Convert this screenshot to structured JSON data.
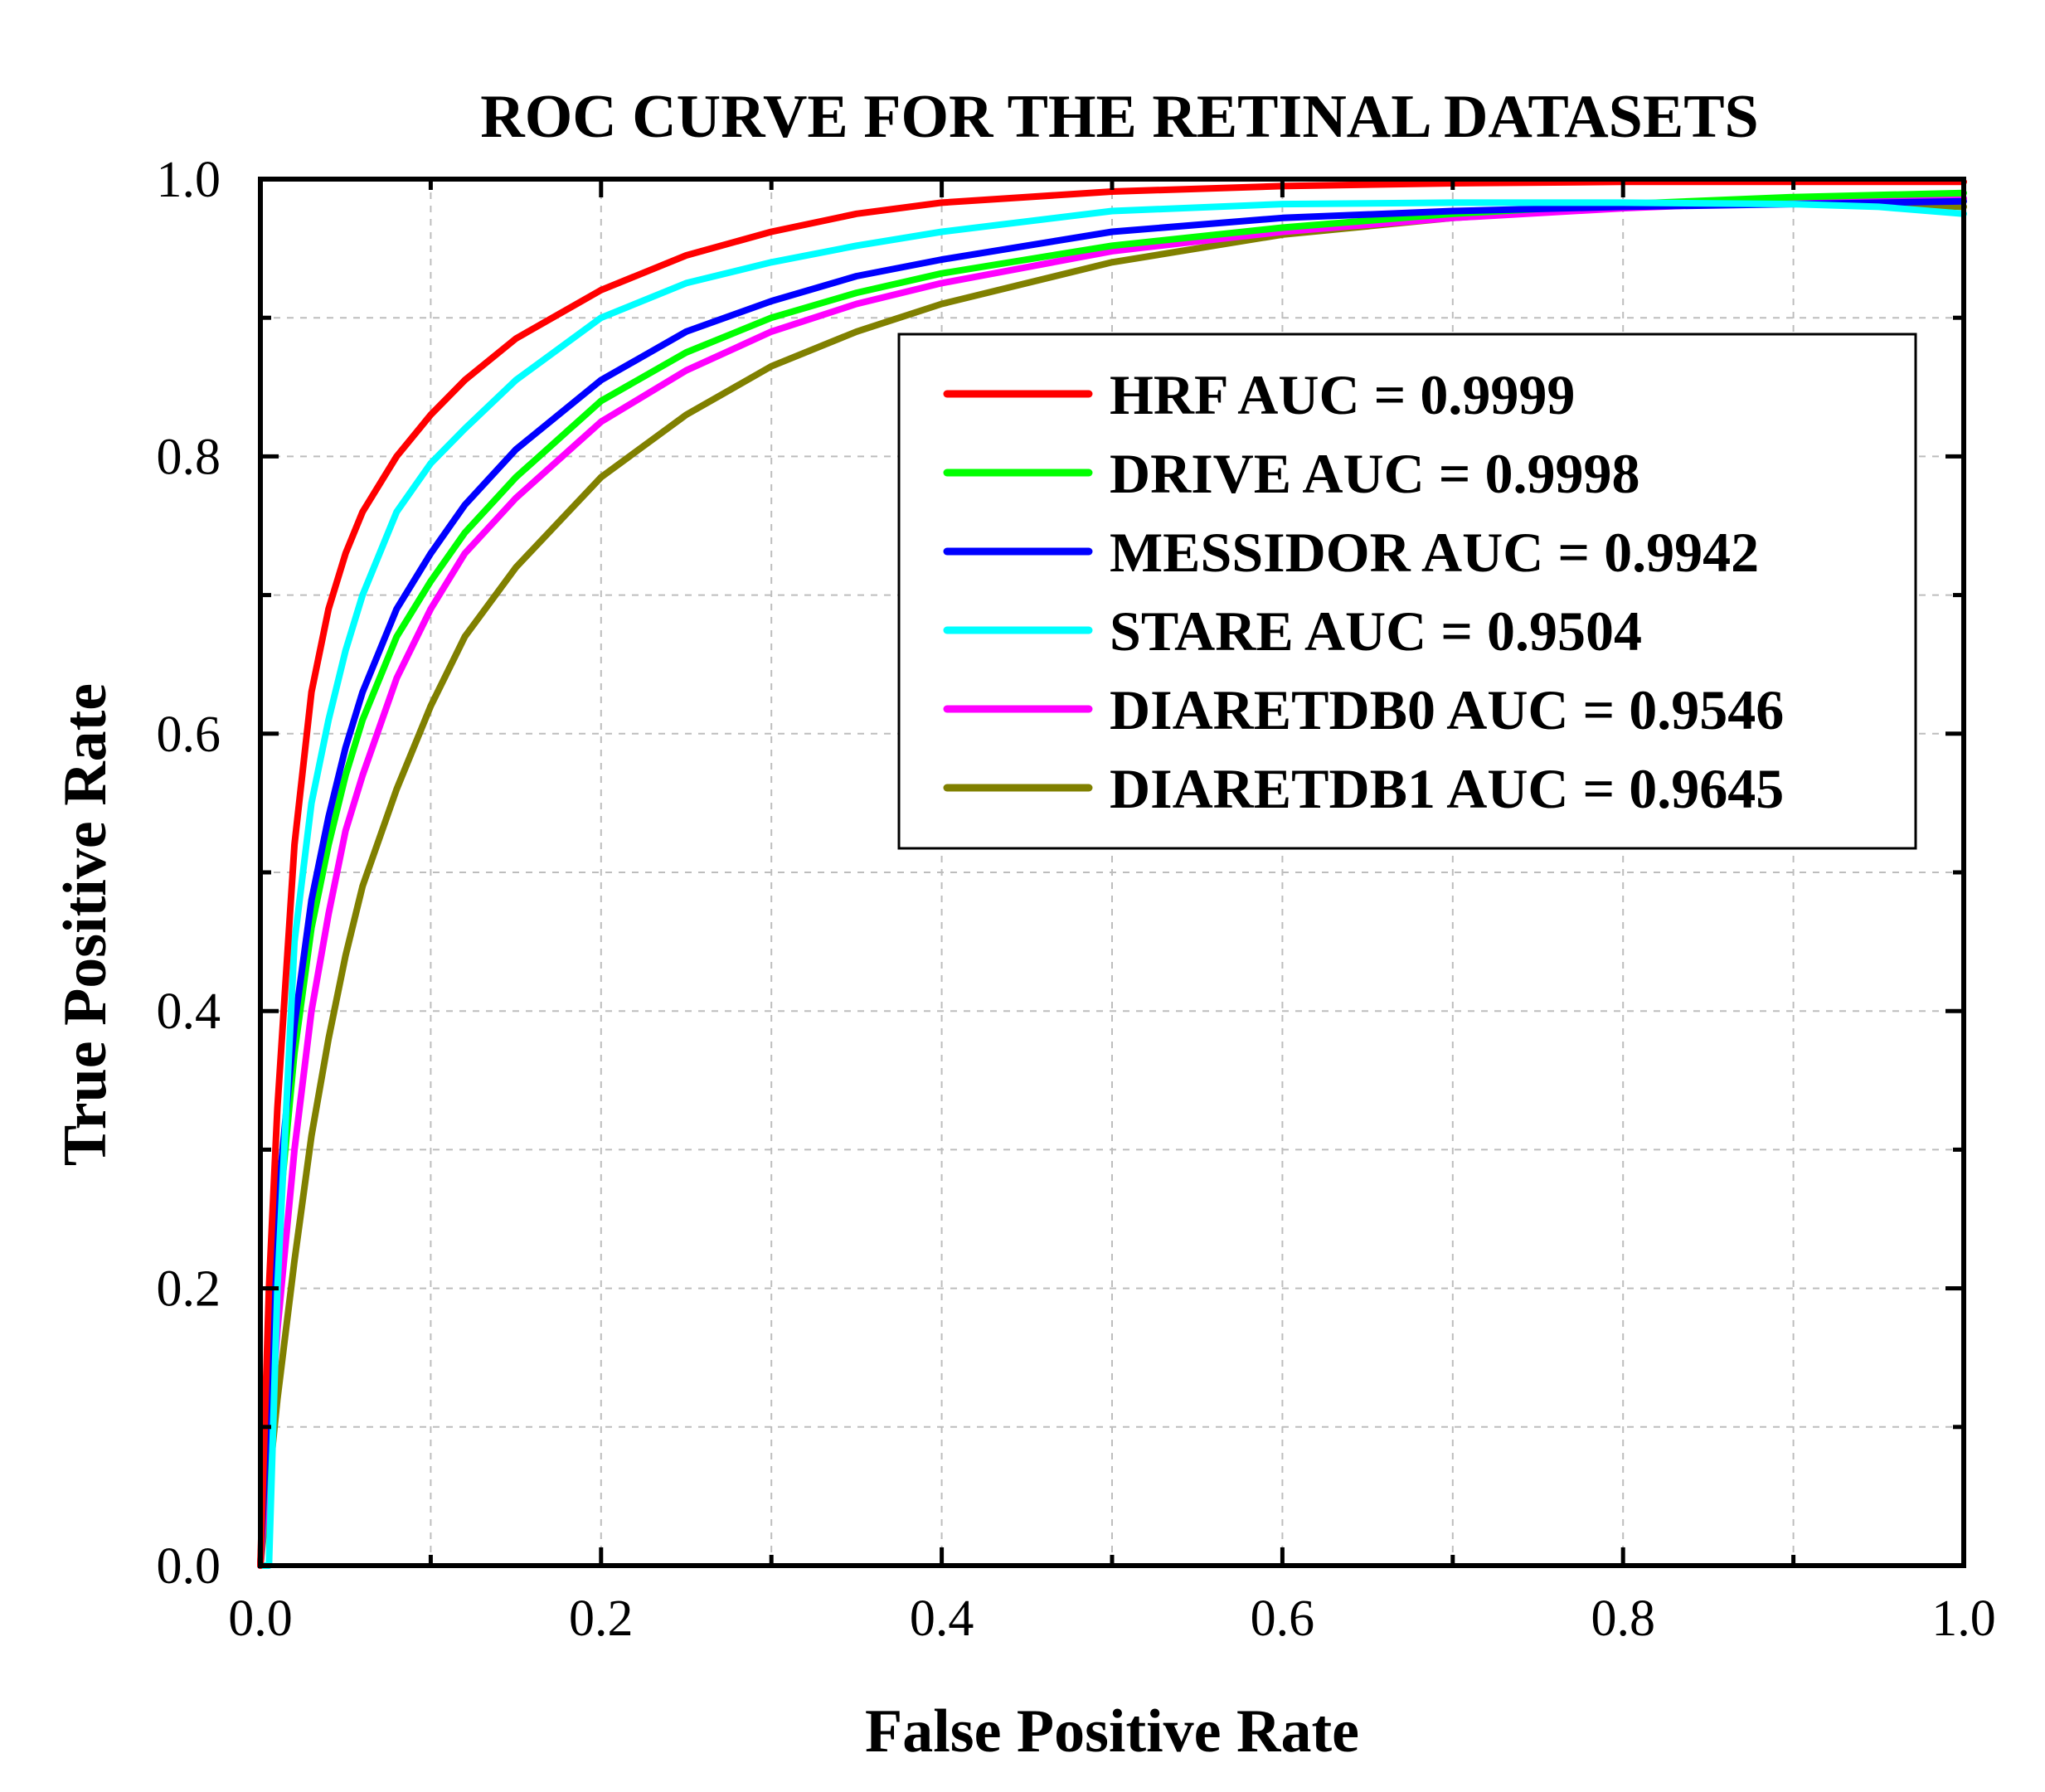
{
  "chart_data": {
    "type": "line",
    "title": "ROC CURVE FOR THE RETINAL DATASETS",
    "xlabel": "False Positive Rate",
    "ylabel": "True Positive Rate",
    "xlim": [
      0.0,
      1.0
    ],
    "ylim": [
      0.0,
      1.0
    ],
    "xticks": [
      "0.0",
      "0.2",
      "0.4",
      "0.6",
      "0.8",
      "1.0"
    ],
    "yticks": [
      "0.0",
      "0.2",
      "0.4",
      "0.6",
      "0.8",
      "1.0"
    ],
    "grid": true,
    "legend_position": "top-right",
    "series": [
      {
        "name": "HRF AUC = 0.9999",
        "color": "#ff0000",
        "x": [
          0.0,
          0.005,
          0.01,
          0.02,
          0.03,
          0.04,
          0.05,
          0.06,
          0.08,
          0.1,
          0.12,
          0.15,
          0.2,
          0.25,
          0.3,
          0.35,
          0.4,
          0.5,
          0.6,
          0.7,
          0.8,
          0.9,
          1.0
        ],
        "y": [
          0.0,
          0.2,
          0.33,
          0.52,
          0.63,
          0.69,
          0.73,
          0.76,
          0.8,
          0.83,
          0.855,
          0.885,
          0.92,
          0.945,
          0.962,
          0.975,
          0.983,
          0.991,
          0.995,
          0.997,
          0.998,
          0.998,
          0.998
        ]
      },
      {
        "name": "DRIVE AUC = 0.9998",
        "color": "#00ff00",
        "x": [
          0.0,
          0.01,
          0.02,
          0.03,
          0.04,
          0.05,
          0.06,
          0.08,
          0.1,
          0.12,
          0.15,
          0.2,
          0.25,
          0.3,
          0.35,
          0.4,
          0.5,
          0.6,
          0.7,
          0.8,
          0.9,
          1.0
        ],
        "y": [
          0.0,
          0.24,
          0.37,
          0.46,
          0.52,
          0.57,
          0.61,
          0.67,
          0.71,
          0.745,
          0.785,
          0.84,
          0.875,
          0.9,
          0.918,
          0.932,
          0.952,
          0.965,
          0.975,
          0.982,
          0.987,
          0.99
        ]
      },
      {
        "name": "MESSIDOR AUC = 0.9942",
        "color": "#0000ff",
        "x": [
          0.0,
          0.01,
          0.02,
          0.03,
          0.04,
          0.05,
          0.06,
          0.08,
          0.1,
          0.12,
          0.15,
          0.2,
          0.25,
          0.3,
          0.35,
          0.4,
          0.5,
          0.6,
          0.7,
          0.8,
          0.9,
          1.0
        ],
        "y": [
          0.0,
          0.26,
          0.39,
          0.48,
          0.54,
          0.59,
          0.63,
          0.69,
          0.73,
          0.765,
          0.805,
          0.855,
          0.89,
          0.912,
          0.93,
          0.942,
          0.962,
          0.972,
          0.977,
          0.98,
          0.982,
          0.984
        ]
      },
      {
        "name": "STARE AUC = 0.9504",
        "color": "#00ffff",
        "x": [
          0.0,
          0.005,
          0.01,
          0.02,
          0.03,
          0.04,
          0.05,
          0.06,
          0.08,
          0.1,
          0.12,
          0.15,
          0.2,
          0.25,
          0.3,
          0.35,
          0.4,
          0.5,
          0.6,
          0.7,
          0.8,
          0.9,
          0.95,
          1.0
        ],
        "y": [
          0.0,
          0.0,
          0.2,
          0.45,
          0.55,
          0.61,
          0.66,
          0.7,
          0.76,
          0.795,
          0.82,
          0.855,
          0.9,
          0.925,
          0.94,
          0.952,
          0.962,
          0.977,
          0.982,
          0.983,
          0.983,
          0.982,
          0.98,
          0.975
        ]
      },
      {
        "name": "DIARETDB0 AUC = 0.9546",
        "color": "#ff00ff",
        "x": [
          0.0,
          0.01,
          0.02,
          0.03,
          0.04,
          0.05,
          0.06,
          0.08,
          0.1,
          0.12,
          0.15,
          0.2,
          0.25,
          0.3,
          0.35,
          0.4,
          0.5,
          0.6,
          0.7,
          0.8,
          0.9,
          1.0
        ],
        "y": [
          0.0,
          0.17,
          0.3,
          0.4,
          0.47,
          0.53,
          0.57,
          0.64,
          0.69,
          0.73,
          0.77,
          0.825,
          0.862,
          0.89,
          0.91,
          0.925,
          0.948,
          0.962,
          0.972,
          0.979,
          0.984,
          0.986
        ]
      },
      {
        "name": "DIARETDB1 AUC = 0.9645",
        "color": "#808000",
        "x": [
          0.0,
          0.01,
          0.02,
          0.03,
          0.04,
          0.05,
          0.06,
          0.08,
          0.1,
          0.12,
          0.15,
          0.2,
          0.25,
          0.3,
          0.35,
          0.4,
          0.5,
          0.6,
          0.7,
          0.8,
          0.9,
          1.0
        ],
        "y": [
          0.0,
          0.12,
          0.22,
          0.31,
          0.38,
          0.44,
          0.49,
          0.56,
          0.62,
          0.67,
          0.72,
          0.785,
          0.83,
          0.865,
          0.89,
          0.91,
          0.94,
          0.96,
          0.972,
          0.98,
          0.984,
          0.98
        ]
      }
    ]
  }
}
